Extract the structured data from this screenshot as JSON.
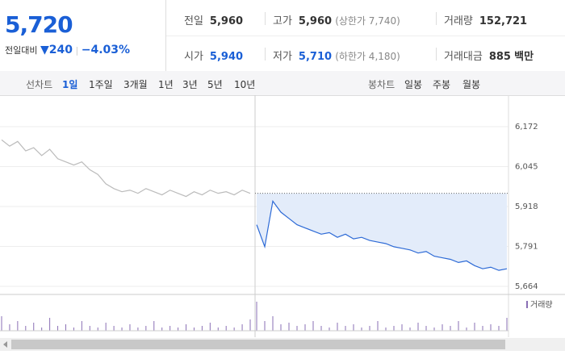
{
  "quote": {
    "price": "5,720",
    "change_label": "전일대비",
    "change": "240",
    "change_pct": "−4.03%"
  },
  "summary": [
    [
      {
        "label": "전일",
        "value": "5,960"
      },
      {
        "label": "고가",
        "value": "5,960",
        "note": "(상한가 7,740)"
      },
      {
        "label": "거래량",
        "value": "152,721"
      }
    ],
    [
      {
        "label": "시가",
        "value": "5,940"
      },
      {
        "label": "저가",
        "value": "5,710",
        "note": "(하한가 4,180)"
      },
      {
        "label": "거래대금",
        "value": "885",
        "unit": "백만"
      }
    ]
  ],
  "tabs": {
    "line_label": "선차트",
    "line": [
      "1일",
      "1주일",
      "3개월",
      "1년",
      "3년",
      "5년",
      "10년"
    ],
    "selected": 0,
    "candle_label": "봉차트",
    "candle": [
      "일봉",
      "주봉",
      "월봉"
    ]
  },
  "chart_data": {
    "type": "line",
    "ylim": [
      5664,
      6172
    ],
    "yticks": [
      {
        "value": 6172,
        "label": "6,172"
      },
      {
        "value": 6045,
        "label": "6,045"
      },
      {
        "value": 5918,
        "label": "5,918"
      },
      {
        "value": 5791,
        "label": "5,791"
      },
      {
        "value": 5664,
        "label": "5,664"
      }
    ],
    "grid": true,
    "reference_line": 5960,
    "series": [
      {
        "color": "#bbbbbb",
        "values": [
          6130,
          6110,
          6125,
          6095,
          6105,
          6080,
          6100,
          6070,
          6060,
          6050,
          6060,
          6035,
          6020,
          5990,
          5975,
          5965,
          5970,
          5960,
          5975,
          5965,
          5955,
          5970,
          5960,
          5950,
          5965,
          5955,
          5970,
          5960,
          5965,
          5955,
          5970,
          5960
        ]
      },
      {
        "color": "#2d6ad6",
        "fill": "#e3ecfa",
        "values": [
          5860,
          5790,
          5935,
          5900,
          5880,
          5860,
          5850,
          5840,
          5830,
          5835,
          5820,
          5830,
          5815,
          5820,
          5810,
          5805,
          5800,
          5790,
          5785,
          5780,
          5770,
          5775,
          5760,
          5755,
          5750,
          5740,
          5745,
          5730,
          5720,
          5725,
          5715,
          5720
        ]
      }
    ],
    "volume": {
      "name": "거래량",
      "color": "#8a6fb5",
      "values": [
        9,
        4,
        6,
        3,
        5,
        2,
        8,
        3,
        4,
        2,
        6,
        3,
        2,
        5,
        3,
        2,
        4,
        2,
        3,
        6,
        2,
        3,
        2,
        4,
        2,
        3,
        5,
        2,
        3,
        2,
        4,
        7,
        18,
        6,
        9,
        4,
        5,
        3,
        4,
        6,
        3,
        2,
        5,
        3,
        4,
        2,
        3,
        6,
        2,
        3,
        4,
        2,
        5,
        3,
        2,
        4,
        3,
        6,
        2,
        5,
        3,
        4,
        3,
        8
      ]
    }
  }
}
